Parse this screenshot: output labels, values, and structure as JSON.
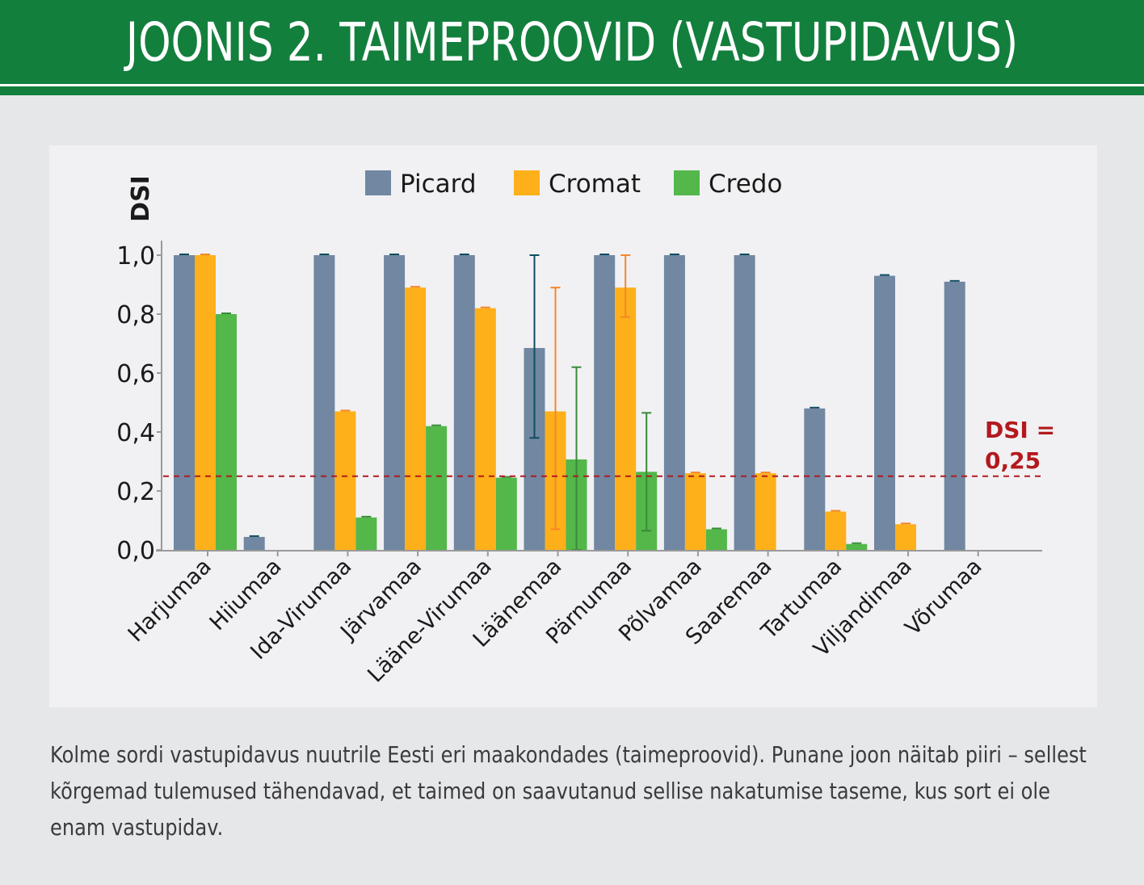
{
  "header": {
    "title": "JOONIS 2. TAIMEPROOVID (VASTUPIDAVUS)"
  },
  "caption": "Kolme sordi vastupidavus nuutrile Eesti eri maakondades (taimeproovid). Punane joon näitab piiri – sellest kõrgemad tulemused tähendavad, et taimed on saavutanud sellise nakatumise taseme, kus sort ei ole enam vastupidav.",
  "chart_data": {
    "type": "bar",
    "title": "JOONIS 2. TAIMEPROOVID (VASTUPIDAVUS)",
    "xlabel": "",
    "ylabel": "DSI",
    "ylim": [
      0,
      1.0
    ],
    "yticks": [
      "0,0",
      "0,2",
      "0,4",
      "0,6",
      "0,8",
      "1,0"
    ],
    "ytick_values": [
      0,
      0.2,
      0.4,
      0.6,
      0.8,
      1.0
    ],
    "grid": false,
    "legend_position": "top-center",
    "categories": [
      "Harjumaa",
      "Hiiumaa",
      "Ida-Virumaa",
      "Järvamaa",
      "Lääne-Virumaa",
      "Läänemaa",
      "Pärnumaa",
      "Põlvamaa",
      "Saaremaa",
      "Tartumaa",
      "Viljandimaa",
      "Võrumaa"
    ],
    "series": [
      {
        "name": "Picard",
        "color": "#7187a2",
        "error_color": "#0f4d5e",
        "values": [
          1.0,
          0.044,
          1.0,
          1.0,
          1.0,
          0.685,
          1.0,
          1.0,
          1.0,
          0.48,
          0.93,
          0.91
        ],
        "error_low": [
          1.0,
          0.044,
          1.0,
          1.0,
          1.0,
          0.38,
          1.0,
          1.0,
          1.0,
          0.48,
          0.93,
          0.91
        ],
        "error_high": [
          1.0,
          0.044,
          1.0,
          1.0,
          1.0,
          1.0,
          1.0,
          1.0,
          1.0,
          0.48,
          0.93,
          0.91
        ]
      },
      {
        "name": "Cromat",
        "color": "#fdb01a",
        "error_color": "#f5862a",
        "values": [
          1.0,
          null,
          0.47,
          0.89,
          0.82,
          0.47,
          0.89,
          0.26,
          0.26,
          0.13,
          0.087,
          null
        ],
        "error_low": [
          1.0,
          null,
          0.47,
          0.89,
          0.82,
          0.07,
          0.79,
          0.26,
          0.26,
          0.13,
          0.087,
          null
        ],
        "error_high": [
          1.0,
          null,
          0.47,
          0.89,
          0.82,
          0.89,
          1.0,
          0.26,
          0.26,
          0.13,
          0.087,
          null
        ]
      },
      {
        "name": "Credo",
        "color": "#53b74a",
        "error_color": "#3a8a3a",
        "values": [
          0.8,
          null,
          0.11,
          0.42,
          0.245,
          0.307,
          0.265,
          0.07,
          null,
          0.02,
          null,
          null
        ],
        "error_low": [
          0.8,
          null,
          0.11,
          0.42,
          0.245,
          0.0,
          0.065,
          0.07,
          null,
          0.02,
          null,
          null
        ],
        "error_high": [
          0.8,
          null,
          0.11,
          0.42,
          0.245,
          0.62,
          0.465,
          0.07,
          null,
          0.02,
          null,
          null
        ]
      }
    ],
    "reference_line": {
      "value": 0.25,
      "label_line1": "DSI =",
      "label_line2": "0,25",
      "color": "#b3191e"
    }
  }
}
